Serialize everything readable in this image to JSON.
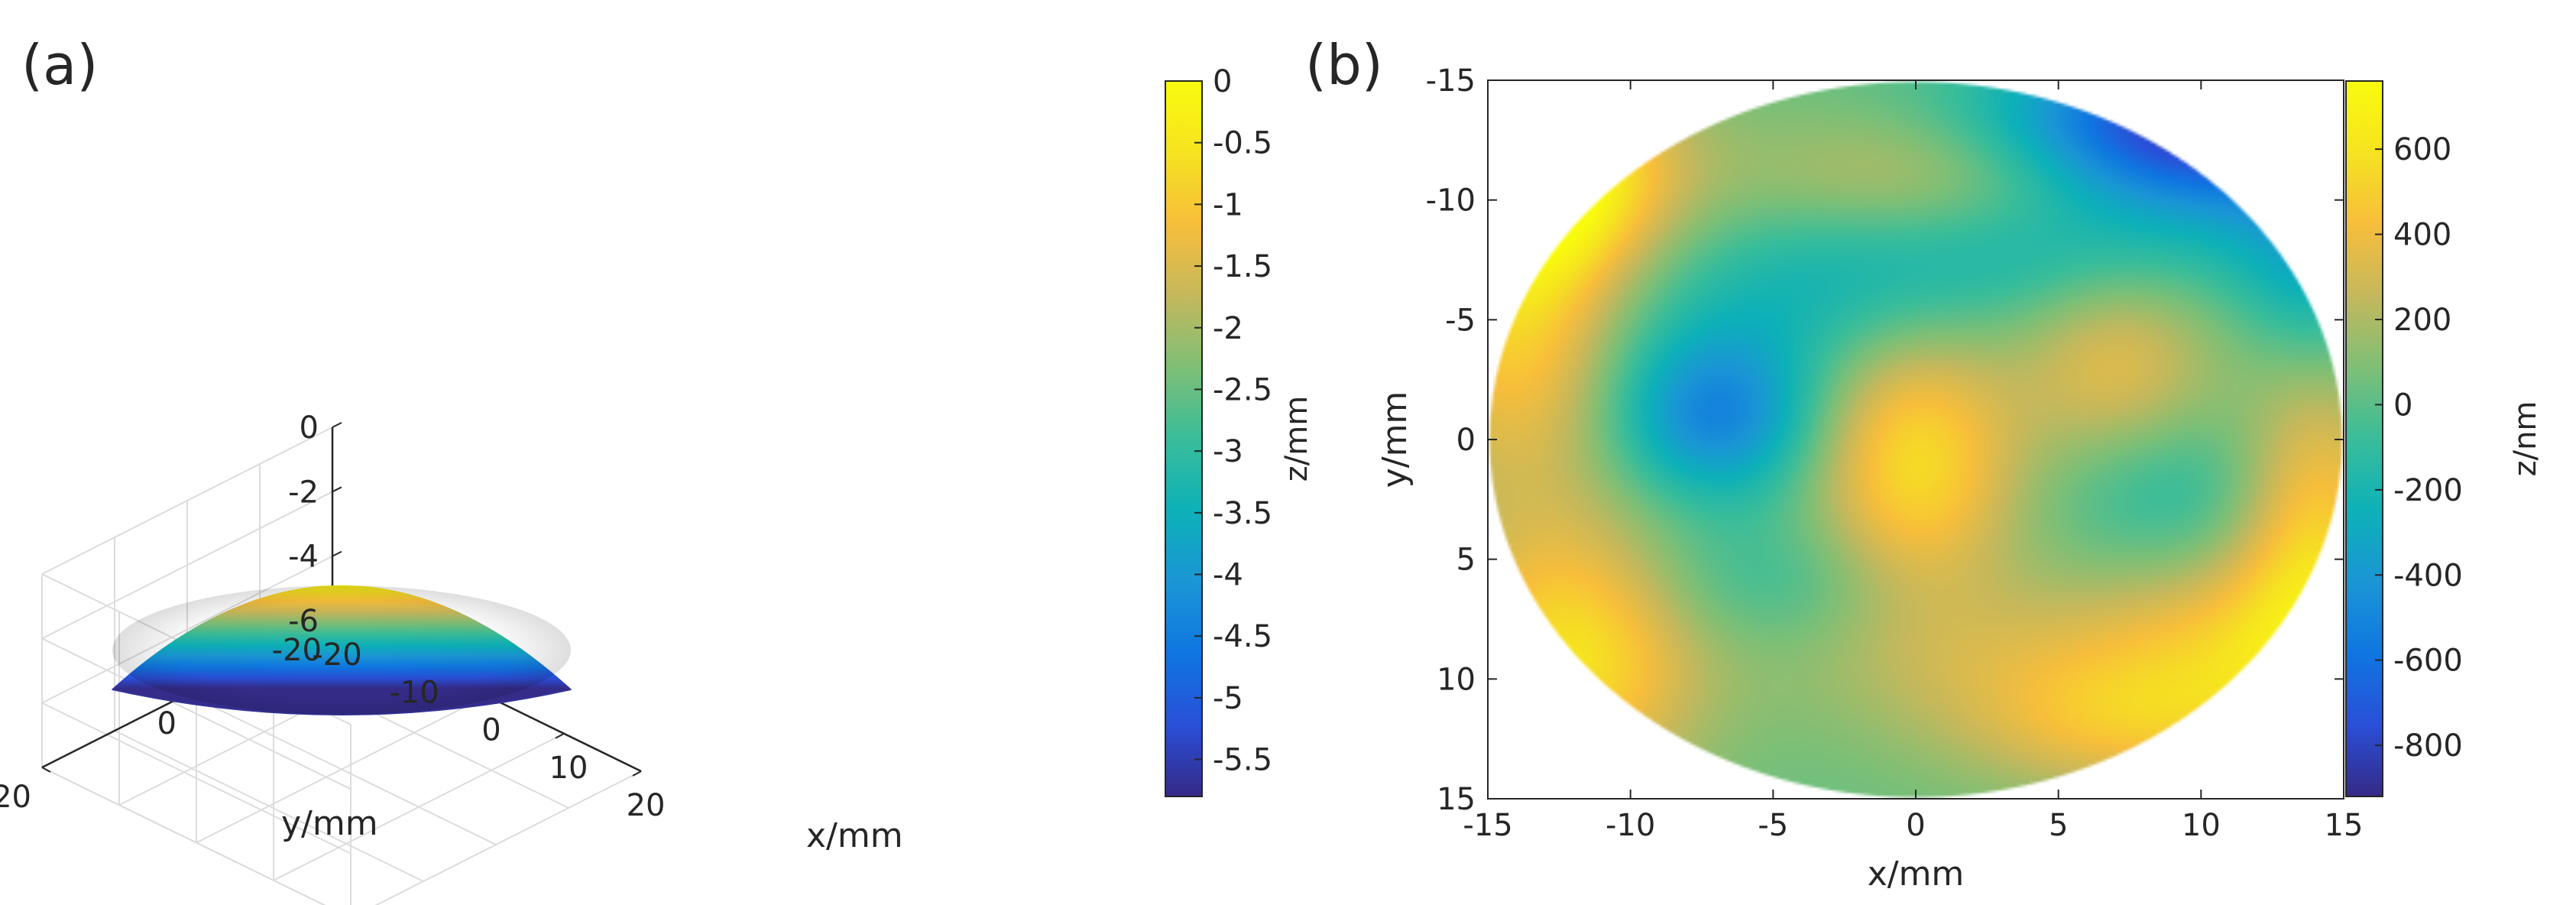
{
  "colors": {
    "parula": [
      "#352a87",
      "#2a4fd8",
      "#0f76e1",
      "#1a96d5",
      "#0db1b8",
      "#39bd9a",
      "#7fbf76",
      "#c5b85c",
      "#f7be3b",
      "#f6e320",
      "#f9fb0e"
    ],
    "axis": "#262626",
    "grid": "#dcdcdc"
  },
  "chart_data": [
    {
      "panel_label": "(a)",
      "type": "surface3d",
      "xlabel": "x/mm",
      "ylabel": "y/mm",
      "zlabel": "",
      "x_ticks": [
        {
          "value": -20,
          "label": "-20"
        },
        {
          "value": -10,
          "label": "-10"
        },
        {
          "value": 0,
          "label": "0"
        },
        {
          "value": 10,
          "label": "10"
        },
        {
          "value": 20,
          "label": "20"
        }
      ],
      "y_ticks": [
        {
          "value": -20,
          "label": "-20"
        },
        {
          "value": 0,
          "label": "0"
        },
        {
          "value": 20,
          "label": "20"
        }
      ],
      "z_ticks": [
        {
          "value": 0,
          "label": "0"
        },
        {
          "value": -2,
          "label": "-2"
        },
        {
          "value": -4,
          "label": "-4"
        },
        {
          "value": -6,
          "label": "-6"
        }
      ],
      "xlim": [
        -20,
        20
      ],
      "ylim": [
        -20,
        20
      ],
      "zlim": [
        -6,
        0
      ],
      "surface": {
        "shape": "paraboloid",
        "aperture_radius": 15,
        "z_apex": -0.3,
        "z_rim": -5.8
      },
      "colorbar": {
        "label": "z/mm",
        "range": [
          -5.8,
          0
        ],
        "ticks": [
          {
            "value": 0,
            "label": "0"
          },
          {
            "value": -0.5,
            "label": "-0.5"
          },
          {
            "value": -1,
            "label": "-1"
          },
          {
            "value": -1.5,
            "label": "-1.5"
          },
          {
            "value": -2,
            "label": "-2"
          },
          {
            "value": -2.5,
            "label": "-2.5"
          },
          {
            "value": -3,
            "label": "-3"
          },
          {
            "value": -3.5,
            "label": "-3.5"
          },
          {
            "value": -4,
            "label": "-4"
          },
          {
            "value": -4.5,
            "label": "-4.5"
          },
          {
            "value": -5,
            "label": "-5"
          },
          {
            "value": -5.5,
            "label": "-5.5"
          }
        ]
      }
    },
    {
      "panel_label": "(b)",
      "type": "heatmap",
      "xlabel": "x/mm",
      "ylabel": "y/mm",
      "xlim": [
        -15,
        15
      ],
      "ylim": [
        -15,
        15
      ],
      "y_reversed": true,
      "x_ticks": [
        {
          "value": -15,
          "label": "-15"
        },
        {
          "value": -10,
          "label": "-10"
        },
        {
          "value": -5,
          "label": "-5"
        },
        {
          "value": 0,
          "label": "0"
        },
        {
          "value": 5,
          "label": "5"
        },
        {
          "value": 10,
          "label": "10"
        },
        {
          "value": 15,
          "label": "15"
        }
      ],
      "y_ticks": [
        {
          "value": -15,
          "label": "-15"
        },
        {
          "value": -10,
          "label": "-10"
        },
        {
          "value": -5,
          "label": "-5"
        },
        {
          "value": 0,
          "label": "0"
        },
        {
          "value": 5,
          "label": "5"
        },
        {
          "value": 10,
          "label": "10"
        },
        {
          "value": 15,
          "label": "15"
        }
      ],
      "aperture_radius": 15,
      "features": [
        {
          "x": 0,
          "y": 1,
          "sx": 2.5,
          "sy": 4,
          "amp": 520
        },
        {
          "x": -7,
          "y": -1,
          "sx": 2.5,
          "sy": 2.5,
          "amp": -550
        },
        {
          "x": 10,
          "y": -13,
          "sx": 5,
          "sy": 2.5,
          "amp": -950
        },
        {
          "x": -13,
          "y": -11,
          "sx": 3,
          "sy": 3,
          "amp": 750
        },
        {
          "x": -14,
          "y": -5,
          "sx": 2.5,
          "sy": 5,
          "amp": 450
        },
        {
          "x": -12,
          "y": 9,
          "sx": 3,
          "sy": 4,
          "amp": 550
        },
        {
          "x": 14,
          "y": 4,
          "sx": 2,
          "sy": 5,
          "amp": 450
        },
        {
          "x": 12,
          "y": 9,
          "sx": 4,
          "sy": 3,
          "amp": 330
        },
        {
          "x": 7,
          "y": -3,
          "sx": 2.5,
          "sy": 3,
          "amp": 320
        },
        {
          "x": 9,
          "y": 2,
          "sx": 3,
          "sy": 2.5,
          "amp": -200
        },
        {
          "x": 1,
          "y": -11,
          "sx": 5,
          "sy": 2,
          "amp": 250
        },
        {
          "x": -3,
          "y": -6,
          "sx": 5,
          "sy": 2.5,
          "amp": -220
        },
        {
          "x": 5,
          "y": -8,
          "sx": 6,
          "sy": 2,
          "amp": -180
        },
        {
          "x": 4,
          "y": 9,
          "sx": 6,
          "sy": 2.5,
          "amp": 200
        },
        {
          "x": -5,
          "y": 6,
          "sx": 4,
          "sy": 2,
          "amp": -150
        },
        {
          "x": 7,
          "y": 12,
          "sx": 4,
          "sy": 2,
          "amp": 280
        },
        {
          "x": 14,
          "y": -7,
          "sx": 2,
          "sy": 3,
          "amp": -300
        }
      ],
      "colorbar": {
        "label": "z/nm",
        "range": [
          -920,
          760
        ],
        "ticks": [
          {
            "value": 600,
            "label": "600"
          },
          {
            "value": 400,
            "label": "400"
          },
          {
            "value": 200,
            "label": "200"
          },
          {
            "value": 0,
            "label": "0"
          },
          {
            "value": -200,
            "label": "-200"
          },
          {
            "value": -400,
            "label": "-400"
          },
          {
            "value": -600,
            "label": "-600"
          },
          {
            "value": -800,
            "label": "-800"
          }
        ]
      }
    }
  ]
}
